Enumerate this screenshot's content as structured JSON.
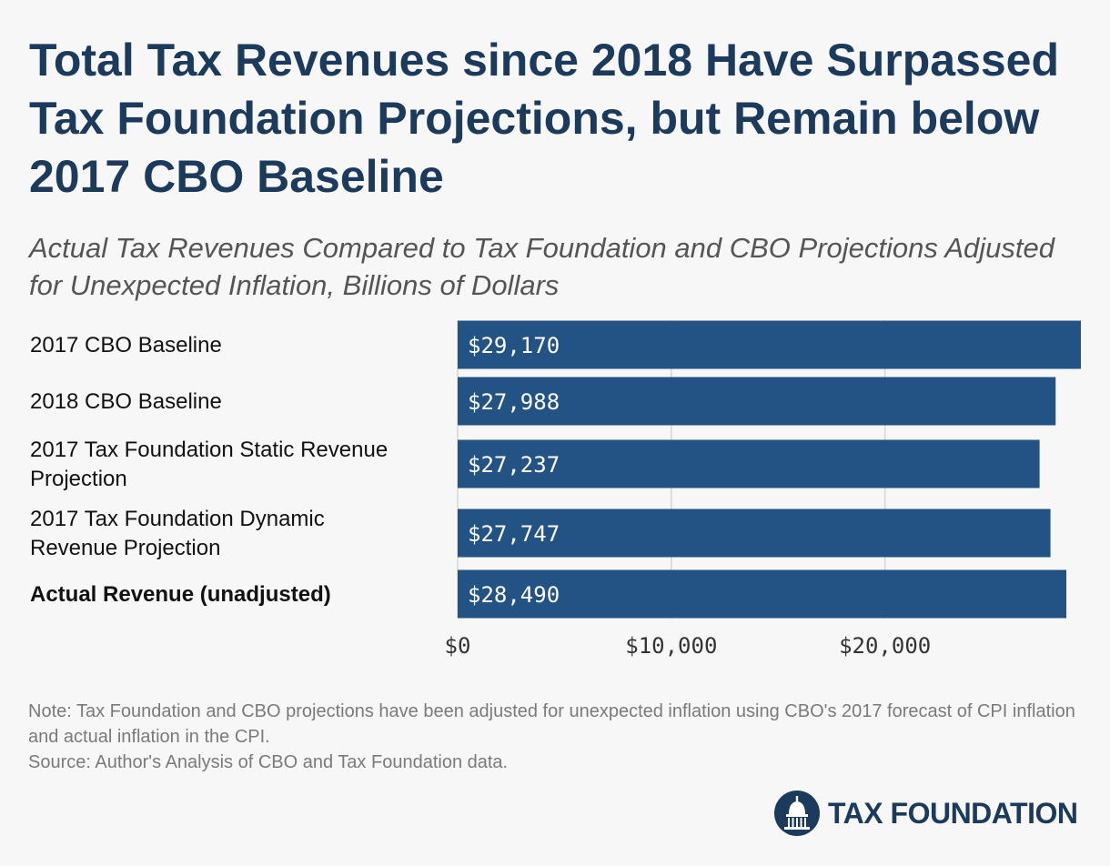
{
  "title": "Total Tax Revenues since 2018 Have Surpassed Tax Foundation Projections, but Remain below 2017 CBO Baseline",
  "subtitle": "Actual Tax Revenues Compared to Tax Foundation and CBO Projections Adjusted for Unexpected Inflation, Billions of Dollars",
  "chart_data": {
    "type": "bar",
    "orientation": "horizontal",
    "categories": [
      "2017 CBO Baseline",
      "2018 CBO Baseline",
      "2017 Tax Foundation Static Revenue Projection",
      "2017 Tax Foundation Dynamic Revenue Projection",
      "Actual Revenue (unadjusted)"
    ],
    "category_lines": [
      [
        "2017 CBO Baseline"
      ],
      [
        "2018 CBO Baseline"
      ],
      [
        "2017 Tax Foundation Static Revenue",
        "Projection"
      ],
      [
        "2017 Tax Foundation Dynamic",
        "Revenue Projection"
      ],
      [
        "Actual Revenue (unadjusted)"
      ]
    ],
    "bold_categories": [
      false,
      false,
      false,
      false,
      true
    ],
    "values": [
      29170,
      27988,
      27237,
      27747,
      28490
    ],
    "value_labels": [
      "$29,170",
      "$27,988",
      "$27,237",
      "$27,747",
      "$28,490"
    ],
    "xlim": [
      0,
      29170
    ],
    "xticks": [
      0,
      10000,
      20000
    ],
    "xtick_labels": [
      "$0",
      "$10,000",
      "$20,000"
    ],
    "grid": true,
    "bar_color": "#235385"
  },
  "note": "Note: Tax Foundation and CBO projections have been adjusted for unexpected inflation using CBO's 2017 forecast of CPI inflation and actual inflation in the CPI.",
  "source": "Source: Author's Analysis of CBO and Tax Foundation data.",
  "logo": {
    "text": "TAX FOUNDATION",
    "icon": "capitol-dome-icon",
    "color": "#1b3a5c"
  }
}
